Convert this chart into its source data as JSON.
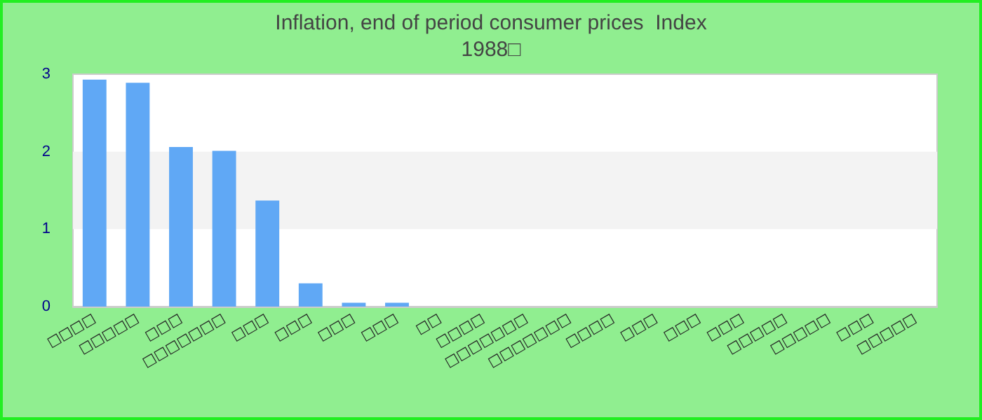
{
  "chart_data": {
    "type": "bar",
    "title": "Inflation, end of period consumer prices  Index",
    "subtitle": "1988□",
    "categories": [
      "□□□□",
      "□□□□□",
      "□□□",
      "□□□□□□□",
      "□□□",
      "□□□",
      "□□□",
      "□□□",
      "□□",
      "□□□□",
      "□□□□□□□",
      "□□□□□□□",
      "□□□□",
      "□□□",
      "□□□",
      "□□□",
      "□□□□□",
      "□□□□□",
      "□□□",
      "□□□□□"
    ],
    "values": [
      2.93,
      2.89,
      2.06,
      2.01,
      1.37,
      0.3,
      0.05,
      0.05,
      0,
      0,
      0,
      0,
      0,
      0,
      0,
      0,
      0,
      0,
      0,
      0
    ],
    "color": "#60a8f5",
    "ylim": [
      0,
      3
    ],
    "yticks": [
      0,
      1,
      2,
      3
    ],
    "bands": [
      {
        "axis": "y",
        "from": 1,
        "to": 2,
        "color": "#f3f3f3"
      }
    ]
  }
}
